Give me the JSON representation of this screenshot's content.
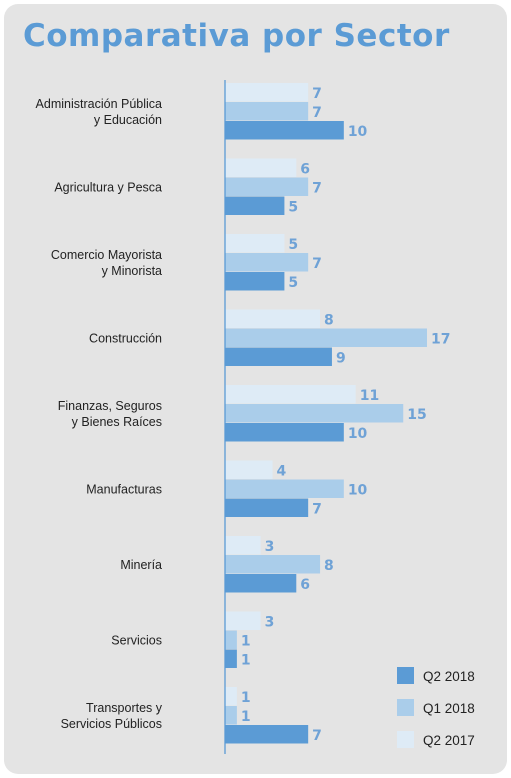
{
  "title": "Comparativa por Sector",
  "colors": {
    "Q2 2018": "#5b9bd5",
    "Q1 2018": "#aacdea",
    "Q2 2017": "#deebf6",
    "value_label": "#6fa2d6"
  },
  "chart_data": {
    "type": "bar",
    "orientation": "horizontal",
    "title": "Comparativa por Sector",
    "categories": [
      [
        "Administración Pública",
        "y Educación"
      ],
      [
        "Agricultura y Pesca"
      ],
      [
        "Comercio Mayorista",
        "y Minorista"
      ],
      [
        "Construcción"
      ],
      [
        "Finanzas, Seguros",
        "y Bienes Raíces"
      ],
      [
        "Manufacturas"
      ],
      [
        "Minería"
      ],
      [
        "Servicios"
      ],
      [
        "Transportes y",
        "Servicios Públicos"
      ]
    ],
    "series": [
      {
        "name": "Q2 2017",
        "values": [
          7,
          6,
          5,
          8,
          11,
          4,
          3,
          3,
          1
        ]
      },
      {
        "name": "Q1 2018",
        "values": [
          7,
          7,
          7,
          17,
          15,
          10,
          8,
          1,
          1
        ]
      },
      {
        "name": "Q2 2018",
        "values": [
          10,
          5,
          5,
          9,
          10,
          7,
          6,
          1,
          7
        ]
      }
    ],
    "legend": [
      "Q2 2018",
      "Q1 2018",
      "Q2 2017"
    ],
    "legend_position": "bottom-right",
    "xlim": [
      0,
      17
    ],
    "grid": false
  }
}
